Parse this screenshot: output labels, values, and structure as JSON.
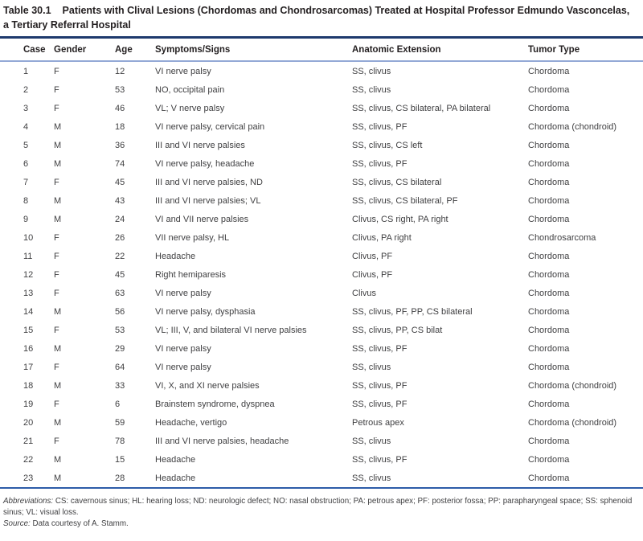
{
  "title": {
    "table_label": "Table 30.1",
    "line1": "Patients with Clival Lesions (Chordomas and Chondrosarcomas) Treated at Hospital Professor Edmundo Vasconcelas,",
    "line2": "a Tertiary Referral Hospital"
  },
  "table": {
    "columns": [
      "Case",
      "Gender",
      "Age",
      "Symptoms/Signs",
      "Anatomic Extension",
      "Tumor Type"
    ],
    "rows": [
      {
        "case": "1",
        "gender": "F",
        "age": "12",
        "symptoms": "VI nerve palsy",
        "extension": "SS, clivus",
        "tumor": "Chordoma"
      },
      {
        "case": "2",
        "gender": "F",
        "age": "53",
        "symptoms": "NO, occipital pain",
        "extension": "SS, clivus",
        "tumor": "Chordoma"
      },
      {
        "case": "3",
        "gender": "F",
        "age": "46",
        "symptoms": "VL; V nerve palsy",
        "extension": "SS, clivus, CS bilateral, PA bilateral",
        "tumor": "Chordoma"
      },
      {
        "case": "4",
        "gender": "M",
        "age": "18",
        "symptoms": "VI nerve palsy, cervical pain",
        "extension": "SS, clivus, PF",
        "tumor": "Chordoma (chondroid)"
      },
      {
        "case": "5",
        "gender": "M",
        "age": "36",
        "symptoms": "III and VI nerve palsies",
        "extension": "SS, clivus, CS left",
        "tumor": "Chordoma"
      },
      {
        "case": "6",
        "gender": "M",
        "age": "74",
        "symptoms": "VI nerve palsy, headache",
        "extension": "SS, clivus, PF",
        "tumor": "Chordoma"
      },
      {
        "case": "7",
        "gender": "F",
        "age": "45",
        "symptoms": "III and VI nerve palsies, ND",
        "extension": "SS, clivus, CS bilateral",
        "tumor": "Chordoma"
      },
      {
        "case": "8",
        "gender": "M",
        "age": "43",
        "symptoms": "III and VI nerve palsies; VL",
        "extension": "SS, clivus, CS bilateral, PF",
        "tumor": "Chordoma"
      },
      {
        "case": "9",
        "gender": "M",
        "age": "24",
        "symptoms": "VI and VII nerve palsies",
        "extension": "Clivus, CS right, PA right",
        "tumor": "Chordoma"
      },
      {
        "case": "10",
        "gender": "F",
        "age": "26",
        "symptoms": "VII nerve palsy, HL",
        "extension": "Clivus, PA right",
        "tumor": "Chondrosarcoma"
      },
      {
        "case": "11",
        "gender": "F",
        "age": "22",
        "symptoms": "Headache",
        "extension": "Clivus, PF",
        "tumor": "Chordoma"
      },
      {
        "case": "12",
        "gender": "F",
        "age": "45",
        "symptoms": "Right hemiparesis",
        "extension": "Clivus, PF",
        "tumor": "Chordoma"
      },
      {
        "case": "13",
        "gender": "F",
        "age": "63",
        "symptoms": "VI nerve palsy",
        "extension": "Clivus",
        "tumor": "Chordoma"
      },
      {
        "case": "14",
        "gender": "M",
        "age": "56",
        "symptoms": "VI nerve palsy, dysphasia",
        "extension": "SS, clivus, PF, PP, CS bilateral",
        "tumor": "Chordoma"
      },
      {
        "case": "15",
        "gender": "F",
        "age": "53",
        "symptoms": "VL; III, V, and bilateral VI nerve palsies",
        "extension": "SS, clivus, PP, CS bilat",
        "tumor": "Chordoma"
      },
      {
        "case": "16",
        "gender": "M",
        "age": "29",
        "symptoms": "VI nerve palsy",
        "extension": "SS, clivus, PF",
        "tumor": "Chordoma"
      },
      {
        "case": "17",
        "gender": "F",
        "age": "64",
        "symptoms": "VI nerve palsy",
        "extension": "SS, clivus",
        "tumor": "Chordoma"
      },
      {
        "case": "18",
        "gender": "M",
        "age": "33",
        "symptoms": "VI, X, and XI nerve palsies",
        "extension": "SS, clivus, PF",
        "tumor": "Chordoma (chondroid)"
      },
      {
        "case": "19",
        "gender": "F",
        "age": "6",
        "symptoms": "Brainstem syndrome, dyspnea",
        "extension": "SS, clivus, PF",
        "tumor": "Chordoma"
      },
      {
        "case": "20",
        "gender": "M",
        "age": "59",
        "symptoms": "Headache, vertigo",
        "extension": "Petrous apex",
        "tumor": "Chordoma (chondroid)"
      },
      {
        "case": "21",
        "gender": "F",
        "age": "78",
        "symptoms": "III and VI nerve palsies, headache",
        "extension": "SS, clivus",
        "tumor": "Chordoma"
      },
      {
        "case": "22",
        "gender": "M",
        "age": "15",
        "symptoms": "Headache",
        "extension": "SS, clivus, PF",
        "tumor": "Chordoma"
      },
      {
        "case": "23",
        "gender": "M",
        "age": "28",
        "symptoms": "Headache",
        "extension": "SS, clivus",
        "tumor": "Chordoma"
      }
    ]
  },
  "footnotes": {
    "abbreviations_label": "Abbreviations:",
    "abbreviations_text": " CS: cavernous sinus; HL: hearing loss; ND: neurologic defect; NO: nasal obstruction; PA: petrous apex; PF: posterior fossa; PP: parapharyngeal space; SS: sphenoid sinus; VL: visual loss.",
    "source_label": "Source:",
    "source_text": " Data courtesy of A. Stamm."
  },
  "colors": {
    "rule_top_navy": "#1e3a6d",
    "header_underline_blue": "#93a9d6",
    "rule_bottom_blue": "#2d5ca8",
    "heading_text": "#231f20",
    "body_text": "#3f3f41"
  }
}
